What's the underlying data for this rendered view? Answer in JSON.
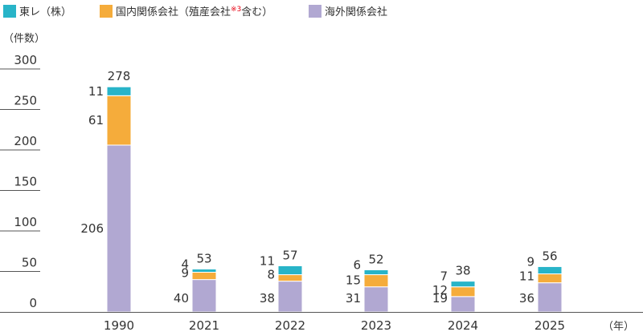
{
  "chart_data": {
    "type": "bar",
    "stacked": true,
    "categories": [
      "1990",
      "2021",
      "2022",
      "2023",
      "2024",
      "2025"
    ],
    "series": [
      {
        "name": "海外関係会社",
        "color": "#b1a8d2",
        "values": [
          206,
          40,
          38,
          31,
          19,
          36
        ]
      },
      {
        "name": "国内関係会社（殖産会社",
        "name_sup": "※3",
        "name_tail": "含む）",
        "color": "#f5ac3b",
        "values": [
          61,
          9,
          8,
          15,
          12,
          11
        ]
      },
      {
        "name": "東レ（株）",
        "color": "#28b4c8",
        "values": [
          11,
          4,
          11,
          6,
          7,
          9
        ]
      }
    ],
    "totals": [
      278,
      53,
      57,
      52,
      38,
      56
    ],
    "ylim": [
      0,
      300
    ],
    "yticks": [
      0,
      50,
      100,
      150,
      200,
      250,
      300
    ],
    "ylabel": "（件数）",
    "xlabel": "（年）",
    "legend_position": "top-left",
    "legend_order": [
      2,
      1,
      0
    ]
  }
}
